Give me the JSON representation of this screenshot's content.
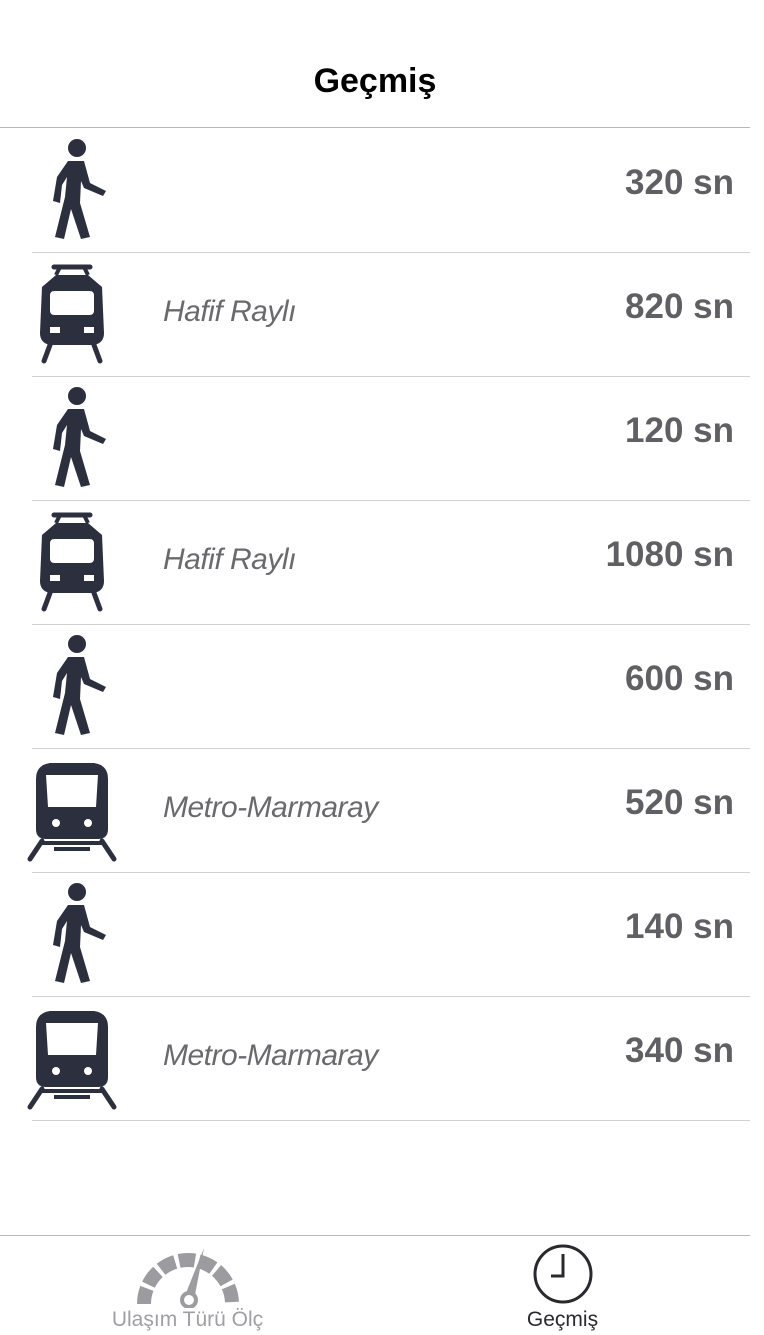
{
  "header": {
    "title": "Geçmiş"
  },
  "history": [
    {
      "mode": "walk",
      "icon": "walking-person-icon",
      "label": "",
      "duration": "320 sn"
    },
    {
      "mode": "tram",
      "icon": "tram-icon",
      "label": "Hafif Raylı",
      "duration": "820 sn"
    },
    {
      "mode": "walk",
      "icon": "walking-person-icon",
      "label": "",
      "duration": "120 sn"
    },
    {
      "mode": "tram",
      "icon": "tram-icon",
      "label": "Hafif Raylı",
      "duration": "1080 sn"
    },
    {
      "mode": "walk",
      "icon": "walking-person-icon",
      "label": "",
      "duration": "600 sn"
    },
    {
      "mode": "metro",
      "icon": "metro-train-icon",
      "label": "Metro-Marmaray",
      "duration": "520 sn"
    },
    {
      "mode": "walk",
      "icon": "walking-person-icon",
      "label": "",
      "duration": "140 sn"
    },
    {
      "mode": "metro",
      "icon": "metro-train-icon",
      "label": "Metro-Marmaray",
      "duration": "340 sn"
    }
  ],
  "tabs": [
    {
      "label": "Ulaşım Türü Ölç",
      "icon": "speedometer-icon",
      "active": false
    },
    {
      "label": "Geçmiş",
      "icon": "clock-icon",
      "active": true
    }
  ],
  "colors": {
    "icon": "#2c2f3e",
    "label": "#6a6a6e",
    "duration": "#606064",
    "tab_inactive": "#a0a0a4",
    "tab_active": "#2a2a2e"
  }
}
